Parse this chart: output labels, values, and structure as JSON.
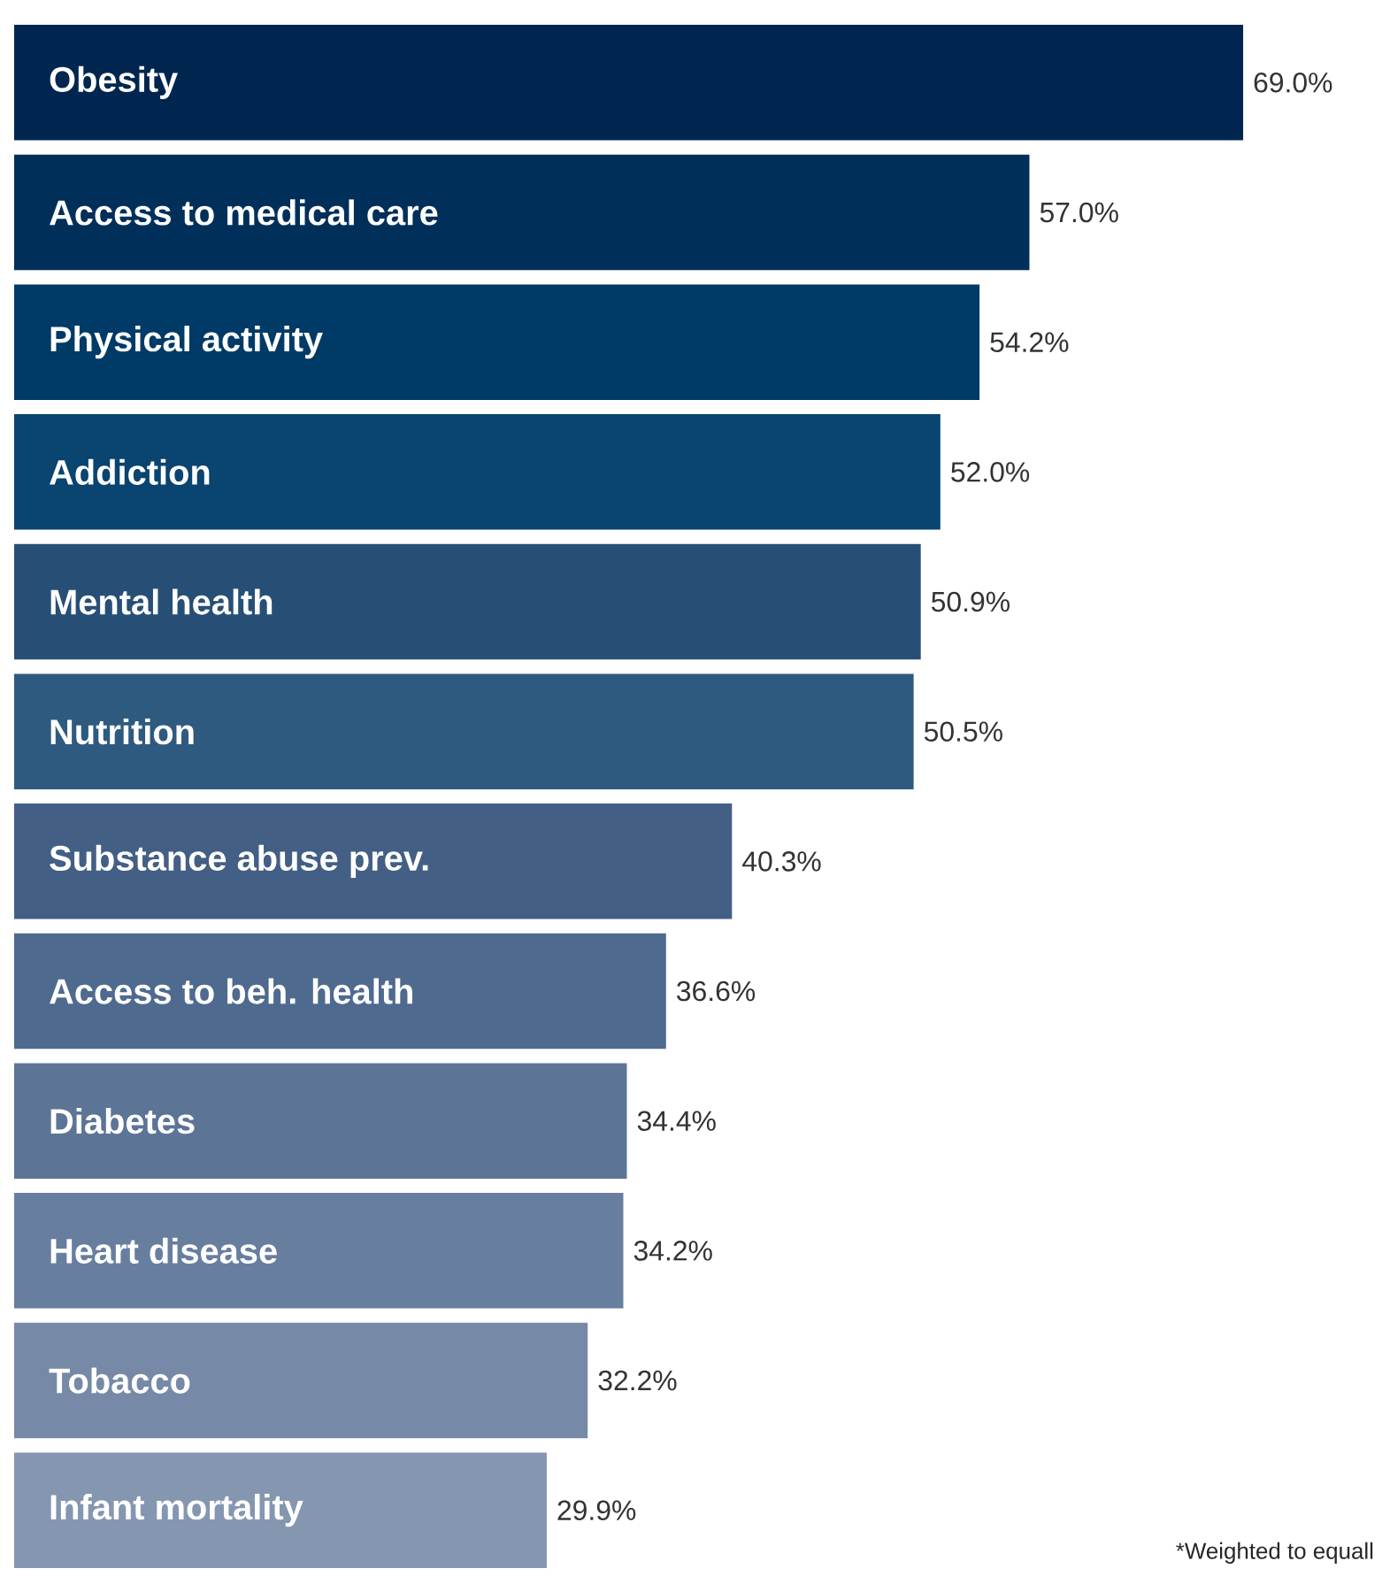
{
  "chart_data": {
    "type": "bar",
    "orientation": "horizontal",
    "categories": [
      "Obesity",
      "Access to medical care",
      "Physical activity",
      "Addiction",
      "Mental health",
      "Nutrition",
      "Substance abuse prev.",
      "Access to beh. health",
      "Diabetes",
      "Heart disease",
      "Tobacco",
      "Infant mortality"
    ],
    "values": [
      69.0,
      57.0,
      54.2,
      52.0,
      50.9,
      50.5,
      40.3,
      36.6,
      34.4,
      34.2,
      32.2,
      29.9
    ],
    "value_labels": [
      "69.0%",
      "57.0%",
      "54.2%",
      "52.0%",
      "50.9%",
      "50.5%",
      "40.3%",
      "36.6%",
      "34.4%",
      "34.2%",
      "32.2%",
      "29.9%"
    ],
    "colors": [
      "#00264f",
      "#00305a",
      "#003a66",
      "#0a4470",
      "#274f76",
      "#2f5a80",
      "#435f85",
      "#4f6a8f",
      "#5c7496",
      "#687e9f",
      "#7689a7",
      "#8596b0"
    ],
    "relative": false,
    "annotations": [
      "*Weighted to equall"
    ]
  }
}
